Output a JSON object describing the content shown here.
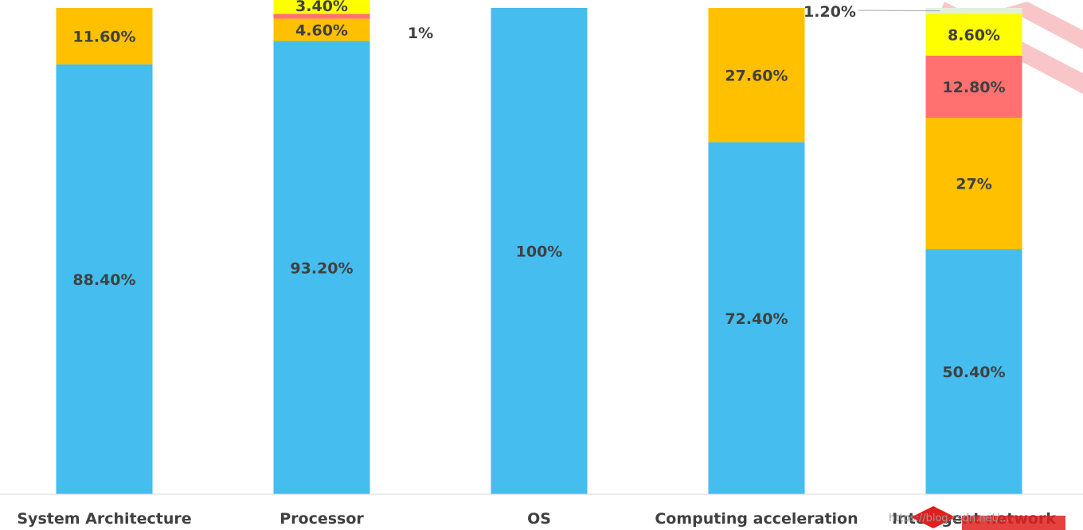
{
  "chart_data": {
    "type": "bar",
    "stacked": true,
    "categories": [
      "System Architecture",
      "Processor",
      "OS",
      "Computing acceleration",
      "Intelligent network"
    ],
    "ylim": [
      0,
      100
    ],
    "grid": false,
    "legend": "none",
    "series": [
      {
        "color": "#45BDEE",
        "values": [
          88.4,
          93.2,
          100,
          72.4,
          50.4
        ],
        "labels": [
          "88.40%",
          "93.20%",
          "100%",
          "72.40%",
          "50.40%"
        ]
      },
      {
        "color": "#FFC000",
        "values": [
          11.6,
          4.6,
          0,
          27.6,
          27
        ],
        "labels": [
          "11.60%",
          "4.60%",
          "",
          "27.60%",
          "27%"
        ]
      },
      {
        "color": "#FF7171",
        "values": [
          0,
          1,
          0,
          0,
          12.8
        ],
        "labels": [
          "",
          "1%",
          "",
          "",
          "12.80%"
        ]
      },
      {
        "color": "#FFFF00",
        "values": [
          0,
          3.4,
          0,
          0,
          8.6
        ],
        "labels": [
          "",
          "3.40%",
          "",
          "",
          "8.60%"
        ]
      },
      {
        "color": "#E2F0D9",
        "values": [
          0,
          0,
          0,
          0,
          1.2
        ],
        "labels": [
          "",
          "",
          "",
          "",
          "1.20%"
        ]
      }
    ],
    "watermark": "https://blog.csdn.net/..."
  },
  "colors": {
    "axis": "#D9D9D9",
    "text": "#404040",
    "logo": "#E02020"
  }
}
